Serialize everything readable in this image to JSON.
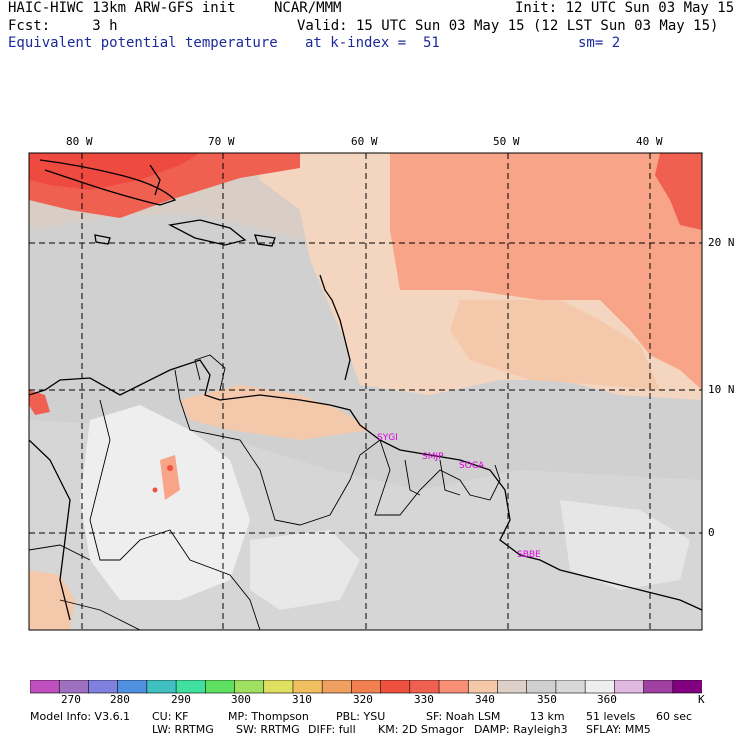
{
  "header": {
    "model_title": "HAIC-HIWC 13km ARW-GFS init",
    "org": "NCAR/MMM",
    "init": "Init: 12 UTC Sun 03 May 15",
    "fcst": "Fcst:     3 h",
    "valid": "Valid: 15 UTC Sun 03 May 15 (12 LST Sun 03 May 15)",
    "field": "Equivalent potential temperature",
    "level": "at k-index =  51",
    "smooth": "sm= 2"
  },
  "map": {
    "lon_labels": [
      "80 W",
      "70 W",
      "60 W",
      "50 W",
      "40 W"
    ],
    "lat_labels": [
      "20 N",
      "10 N",
      "0"
    ],
    "stations": [
      "SYGI",
      "SMJP",
      "SOCA",
      "SBBE"
    ]
  },
  "colorbar": {
    "colors": [
      "#c050c0",
      "#a070c0",
      "#8080e0",
      "#5090e0",
      "#40c0c0",
      "#40e0a0",
      "#60e060",
      "#a0e060",
      "#e0e060",
      "#f0c060",
      "#f0a060",
      "#f08050",
      "#f05040",
      "#f06050",
      "#f89078",
      "#f4c8a8",
      "#ddd0c8",
      "#d0d0d0",
      "#d8d8d8",
      "#eeeeee",
      "#e0b8e0",
      "#a040a0",
      "#800080"
    ],
    "labels": [
      "270",
      "280",
      "290",
      "300",
      "310",
      "320",
      "330",
      "340",
      "350",
      "360"
    ],
    "unit": "K"
  },
  "footer": {
    "line1": [
      "Model Info: V3.6.1",
      "CU: KF",
      "MP: Thompson",
      "PBL: YSU",
      "SF: Noah LSM",
      "13 km",
      "51 levels",
      "60 sec"
    ],
    "line2": [
      "LW: RRTMG",
      "SW: RRTMG",
      "DIFF: full",
      "KM: 2D Smagor",
      "DAMP: Rayleigh3",
      "SFLAY: MM5"
    ]
  }
}
